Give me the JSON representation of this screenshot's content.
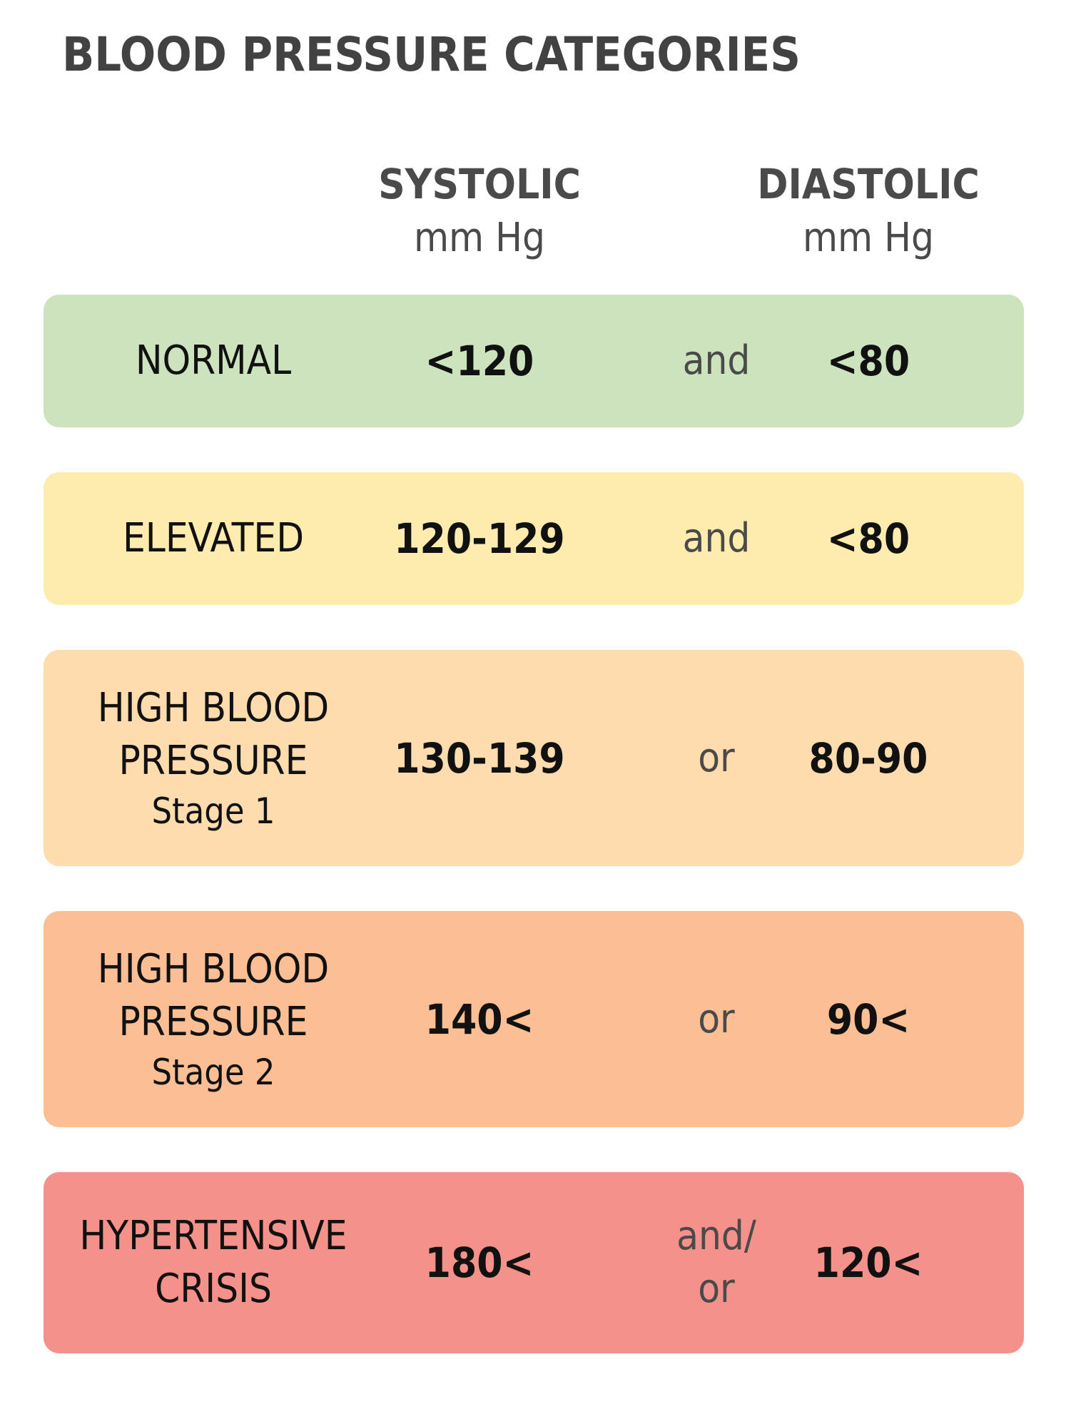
{
  "title": "BLOOD PRESSURE CATEGORIES",
  "columns": {
    "systolic": {
      "name": "SYSTOLIC",
      "unit": "mm Hg"
    },
    "diastolic": {
      "name": "DIASTOLIC",
      "unit": "mm Hg"
    }
  },
  "rows": [
    {
      "category_lines": [
        "NORMAL"
      ],
      "stage": "",
      "systolic": "<120",
      "connector": [
        "and"
      ],
      "diastolic": "<80",
      "color": "#cde3bd"
    },
    {
      "category_lines": [
        "ELEVATED"
      ],
      "stage": "",
      "systolic": "120-129",
      "connector": [
        "and"
      ],
      "diastolic": "<80",
      "color": "#feebae"
    },
    {
      "category_lines": [
        "HIGH BLOOD",
        "PRESSURE"
      ],
      "stage": "Stage 1",
      "systolic": "130-139",
      "connector": [
        "or"
      ],
      "diastolic": "80-90",
      "color": "#fedcae"
    },
    {
      "category_lines": [
        "HIGH BLOOD",
        "PRESSURE"
      ],
      "stage": "Stage 2",
      "systolic": "140<",
      "connector": [
        "or"
      ],
      "diastolic": "90<",
      "color": "#fbbf93"
    },
    {
      "category_lines": [
        "HYPERTENSIVE",
        "CRISIS"
      ],
      "stage": "",
      "systolic": "180<",
      "connector": [
        "and/",
        "or"
      ],
      "diastolic": "120<",
      "color": "#f4918a"
    }
  ]
}
